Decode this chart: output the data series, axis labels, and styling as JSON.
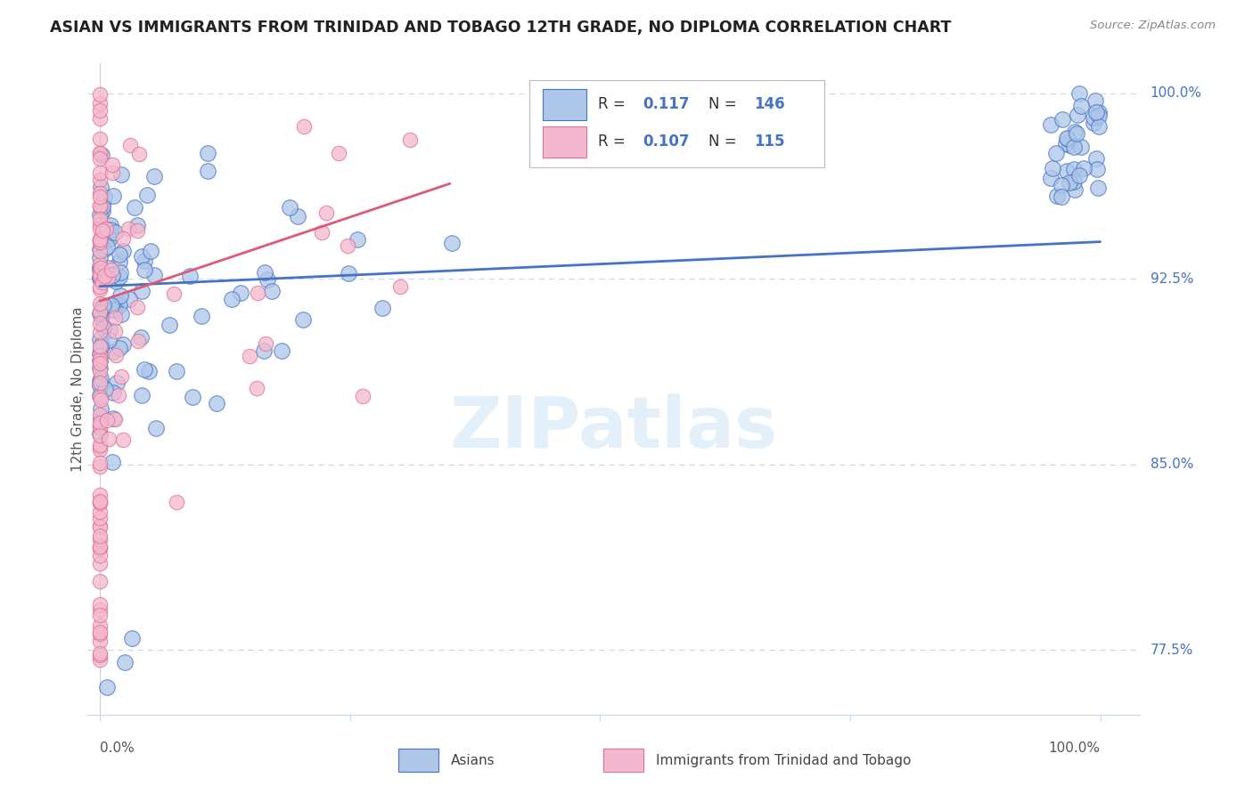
{
  "title": "ASIAN VS IMMIGRANTS FROM TRINIDAD AND TOBAGO 12TH GRADE, NO DIPLOMA CORRELATION CHART",
  "source": "Source: ZipAtlas.com",
  "ylabel": "12th Grade, No Diploma",
  "color_asian": "#aec6e8",
  "color_asian_edge": "#4472c4",
  "color_tt": "#f4b8ce",
  "color_tt_edge": "#e07090",
  "color_asian_line": "#4472c4",
  "color_tt_line": "#e05878",
  "legend_r_asian": "0.117",
  "legend_n_asian": "146",
  "legend_r_tt": "0.107",
  "legend_n_tt": "115",
  "ytick_vals": [
    0.775,
    0.85,
    0.925,
    1.0
  ],
  "ytick_labels": [
    "77.5%",
    "85.0%",
    "92.5%",
    "100.0%"
  ],
  "watermark": "ZIPatlas",
  "grid_color": "#c8d8e8",
  "bottom_border_color": "#c8d8e8"
}
